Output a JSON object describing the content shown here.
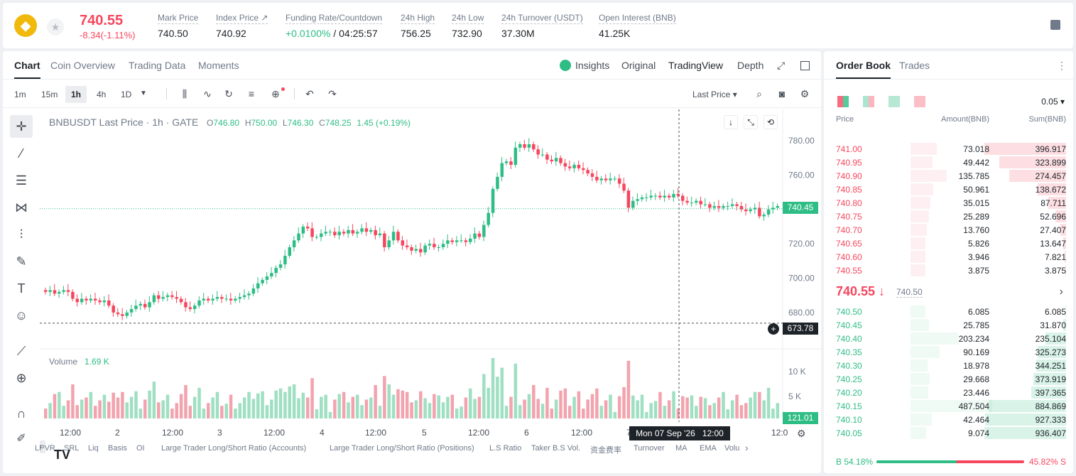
{
  "header": {
    "logo_text": "◆",
    "last_price": "740.55",
    "change": "-8.34(-1.11%)",
    "stats": [
      {
        "label": "Mark Price",
        "value": "740.50"
      },
      {
        "label": "Index Price ↗",
        "value": "740.92"
      },
      {
        "label": "Funding Rate/Countdown",
        "value_green": "+0.0100%",
        "value": " / 04:25:57"
      },
      {
        "label": "24h High",
        "value": "756.25"
      },
      {
        "label": "24h Low",
        "value": "732.90"
      },
      {
        "label": "24h Turnover (USDT)",
        "value": "37.30M"
      },
      {
        "label": "Open Interest (BNB)",
        "value": "41.25K"
      }
    ]
  },
  "chart_tabs": {
    "chart": "Chart",
    "coin_overview": "Coin Overview",
    "trading_data": "Trading Data",
    "moments": "Moments",
    "insights": "Insights",
    "original": "Original",
    "tradingview": "TradingView",
    "depth": "Depth"
  },
  "toolbar": {
    "tf": [
      "1m",
      "15m",
      "1h",
      "4h",
      "1D"
    ],
    "price_type": "Last Price ▾"
  },
  "legend": {
    "symbol": "BNBUSDT Last Price · 1h · GATE",
    "o_label": "O",
    "o": "746.80",
    "h_label": "H",
    "h": "750.00",
    "l_label": "L",
    "l": "746.30",
    "c_label": "C",
    "c": "748.25",
    "change": "1.45 (+0.19%)",
    "volume_label": "Volume",
    "volume": "1.69 K"
  },
  "crosshair": {
    "price": "673.78",
    "time": "Mon 07 Sep '26   12:00"
  },
  "last_price_label": "740.45",
  "volume_last_label": "121.01",
  "bottom_items": [
    "LPVR",
    "SRL",
    "Liq",
    "Basis",
    "OI",
    "Large Trader Long/Short Ratio (Accounts)",
    "Large Trader Long/Short Ratio (Positions)",
    "L.S Ratio",
    "Taker B.S Vol.",
    "资金费率",
    "Turnover",
    "MA",
    "EMA",
    "Volu"
  ],
  "chart_data": {
    "type": "candlestick",
    "title": "BNBUSDT Last Price · 1h · GATE",
    "ylim": [
      670,
      790
    ],
    "yticks": [
      "780.00",
      "760.00",
      "740.00",
      "720.00",
      "700.00",
      "680.00"
    ],
    "xticks": [
      "12:00",
      "2",
      "12:00",
      "3",
      "12:00",
      "4",
      "12:00",
      "5",
      "12:00",
      "6",
      "12:00",
      "7",
      "",
      "12:0"
    ],
    "closes": [
      692,
      693,
      691,
      692,
      693,
      692,
      688,
      686,
      688,
      687,
      688,
      687,
      686,
      687,
      684,
      680,
      679,
      678,
      680,
      682,
      684,
      685,
      683,
      686,
      690,
      688,
      689,
      690,
      689,
      688,
      686,
      683,
      682,
      684,
      687,
      688,
      687,
      688,
      689,
      688,
      688,
      687,
      688,
      689,
      690,
      691,
      694,
      697,
      699,
      701,
      703,
      706,
      708,
      713,
      718,
      722,
      726,
      730,
      729,
      724,
      724,
      726,
      727,
      727,
      725,
      727,
      726,
      728,
      726,
      727,
      729,
      727,
      728,
      725,
      726,
      718,
      722,
      727,
      722,
      719,
      718,
      716,
      717,
      715,
      719,
      720,
      718,
      718,
      720,
      722,
      721,
      722,
      722,
      721,
      723,
      726,
      724,
      731,
      738,
      752,
      759,
      767,
      768,
      766,
      776,
      778,
      776,
      778,
      775,
      772,
      772,
      769,
      768,
      770,
      767,
      765,
      764,
      766,
      764,
      763,
      761,
      759,
      757,
      758,
      757,
      758,
      758,
      755,
      751,
      741,
      745,
      746,
      747,
      747,
      748,
      748,
      747,
      748,
      747,
      749,
      748,
      745,
      744,
      744,
      745,
      743,
      743,
      741,
      742,
      741,
      742,
      742,
      743,
      742,
      740,
      739,
      740,
      741,
      736,
      737,
      740,
      741,
      742
    ],
    "volume_ylim": [
      0,
      12000
    ],
    "volume_yticks": [
      "10 K",
      "5 K"
    ]
  },
  "orderbook": {
    "tabs": [
      "Order Book",
      "Trades"
    ],
    "step": "0.05 ▾",
    "headers": [
      "Price",
      "Amount(BNB)",
      "Sum(BNB)"
    ],
    "asks": [
      [
        "741.00",
        "73.018",
        "396.917"
      ],
      [
        "740.95",
        "49.442",
        "323.899"
      ],
      [
        "740.90",
        "135.785",
        "274.457"
      ],
      [
        "740.85",
        "50.961",
        "138.672"
      ],
      [
        "740.80",
        "35.015",
        "87.711"
      ],
      [
        "740.75",
        "25.289",
        "52.696"
      ],
      [
        "740.70",
        "13.760",
        "27.407"
      ],
      [
        "740.65",
        "5.826",
        "13.647"
      ],
      [
        "740.60",
        "3.946",
        "7.821"
      ],
      [
        "740.55",
        "3.875",
        "3.875"
      ]
    ],
    "mid_price": "740.55 ↓",
    "mid_mark": "740.50",
    "bids": [
      [
        "740.50",
        "6.085",
        "6.085"
      ],
      [
        "740.45",
        "25.785",
        "31.870"
      ],
      [
        "740.40",
        "203.234",
        "235.104"
      ],
      [
        "740.35",
        "90.169",
        "325.273"
      ],
      [
        "740.30",
        "18.978",
        "344.251"
      ],
      [
        "740.25",
        "29.668",
        "373.919"
      ],
      [
        "740.20",
        "23.446",
        "397.365"
      ],
      [
        "740.15",
        "487.504",
        "884.869"
      ],
      [
        "740.10",
        "42.464",
        "927.333"
      ],
      [
        "740.05",
        "9.074",
        "936.407"
      ]
    ],
    "buy_ratio": "B 54.18%",
    "sell_ratio": "45.82% S",
    "buy_pct": 54.18
  }
}
